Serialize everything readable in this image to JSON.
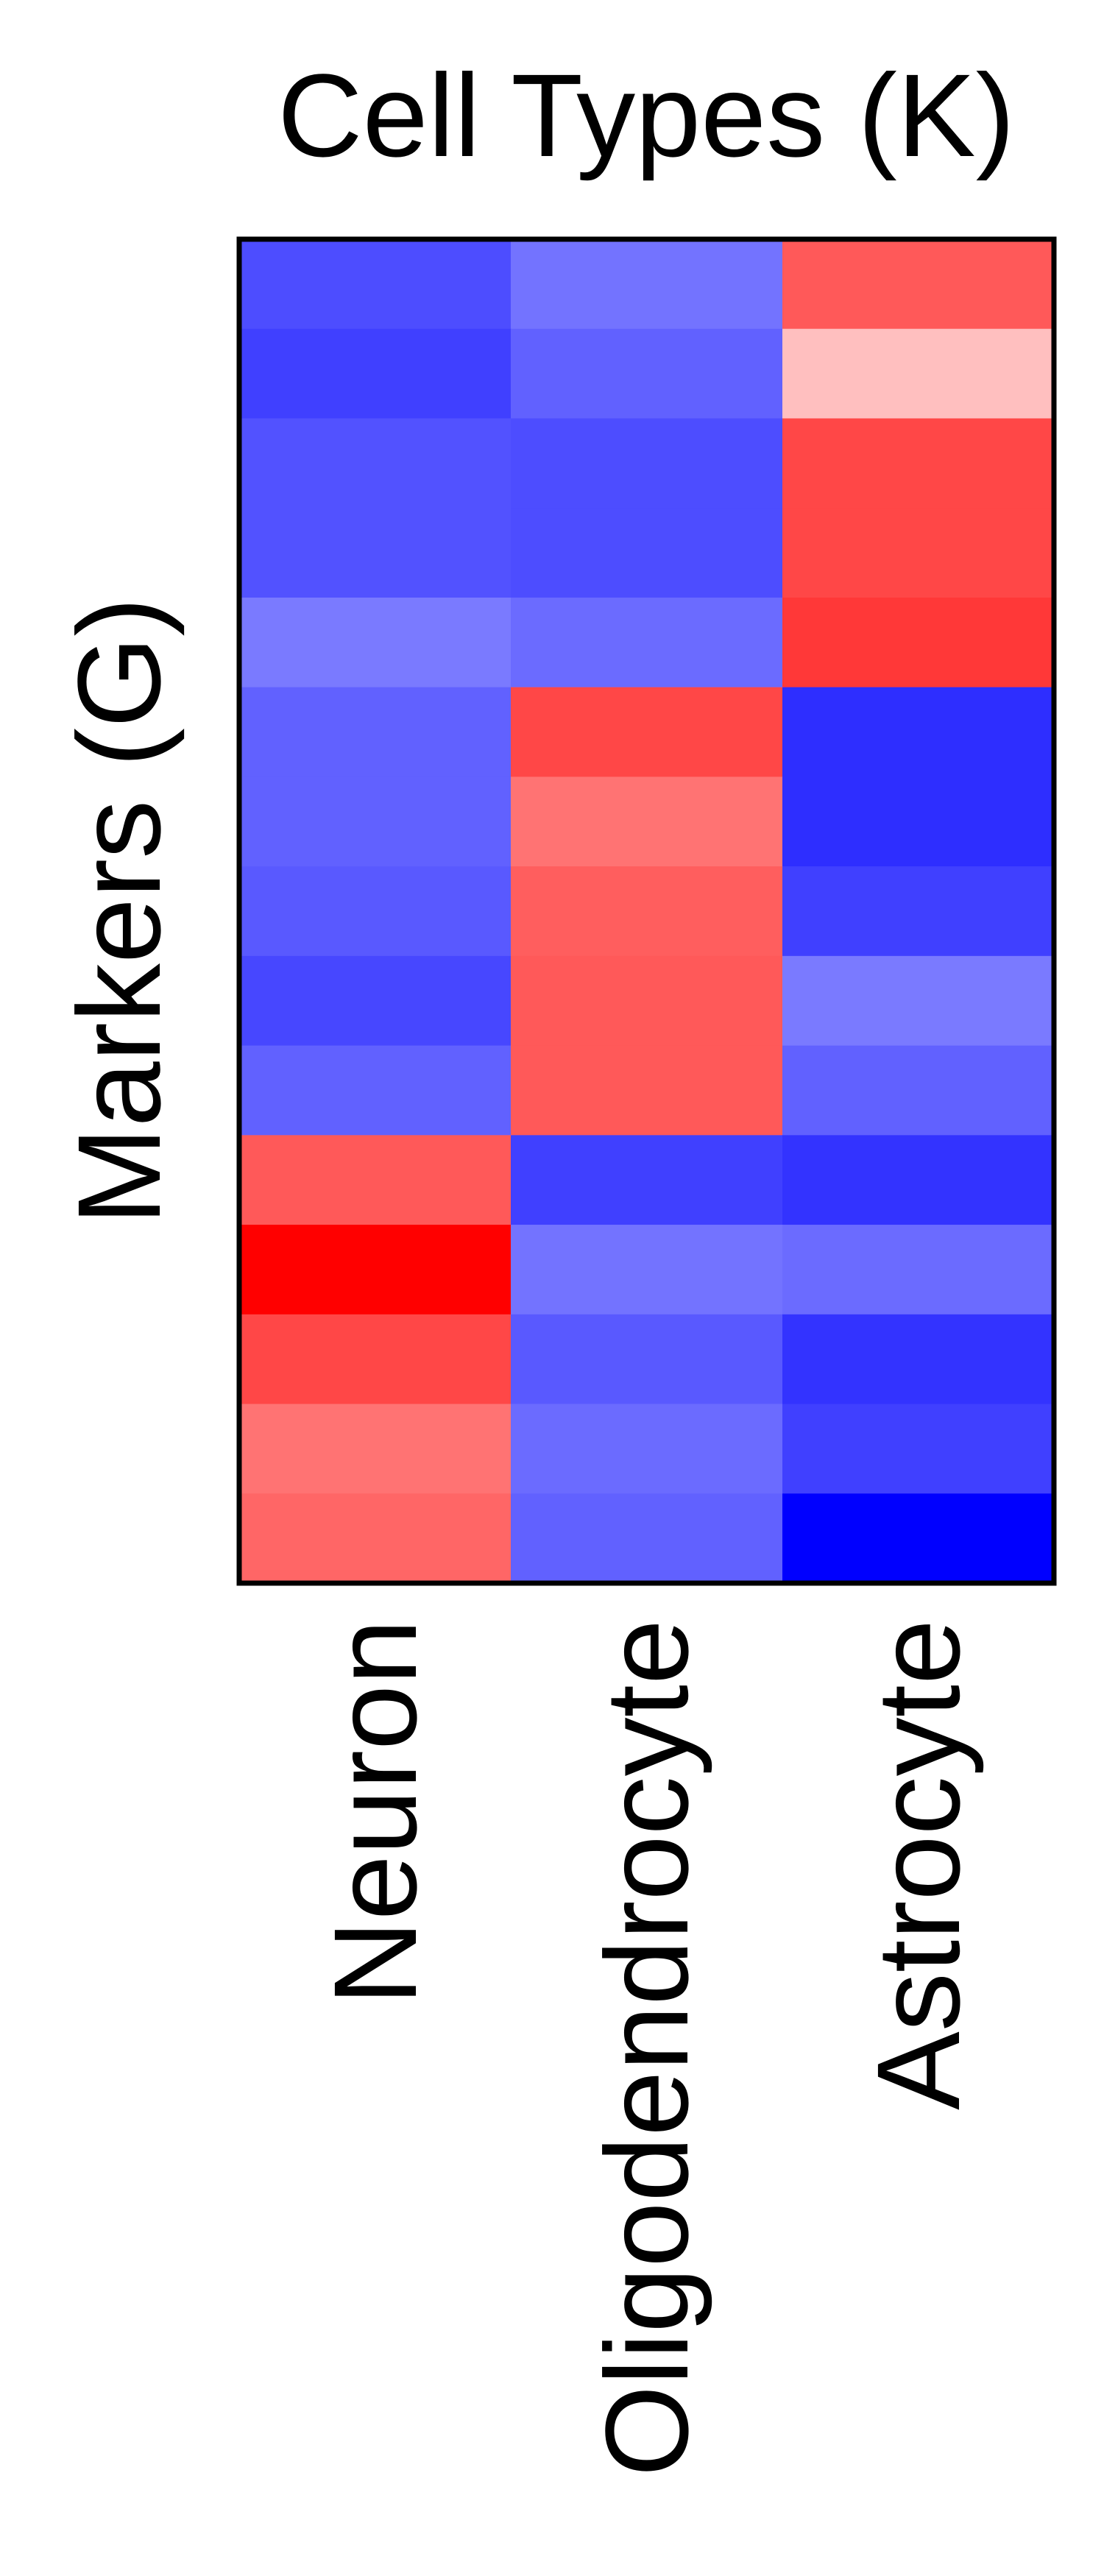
{
  "chart_data": {
    "type": "heatmap",
    "title": "Cell Types (K)",
    "xlabel": "",
    "ylabel": "Markers (G)",
    "x_categories": [
      "Neuron",
      "Oligodendrocyte",
      "Astrocyte"
    ],
    "row_count": 15,
    "row_labels_shown": false,
    "color_scale": {
      "low": "#0000ff",
      "mid": "#ffffff",
      "high": "#ff0000",
      "range": [
        -1,
        1
      ]
    },
    "values": [
      [
        -0.7,
        -0.55,
        0.65
      ],
      [
        -0.75,
        -0.62,
        0.25
      ],
      [
        -0.68,
        -0.7,
        0.72
      ],
      [
        -0.68,
        -0.7,
        0.72
      ],
      [
        -0.52,
        -0.58,
        0.78
      ],
      [
        -0.62,
        0.72,
        -0.82
      ],
      [
        -0.62,
        0.55,
        -0.82
      ],
      [
        -0.65,
        0.63,
        -0.75
      ],
      [
        -0.72,
        0.65,
        -0.52
      ],
      [
        -0.62,
        0.65,
        -0.62
      ],
      [
        0.65,
        -0.75,
        -0.8
      ],
      [
        1.0,
        -0.55,
        -0.58
      ],
      [
        0.72,
        -0.65,
        -0.8
      ],
      [
        0.55,
        -0.58,
        -0.75
      ],
      [
        0.6,
        -0.62,
        -1.0
      ]
    ]
  }
}
